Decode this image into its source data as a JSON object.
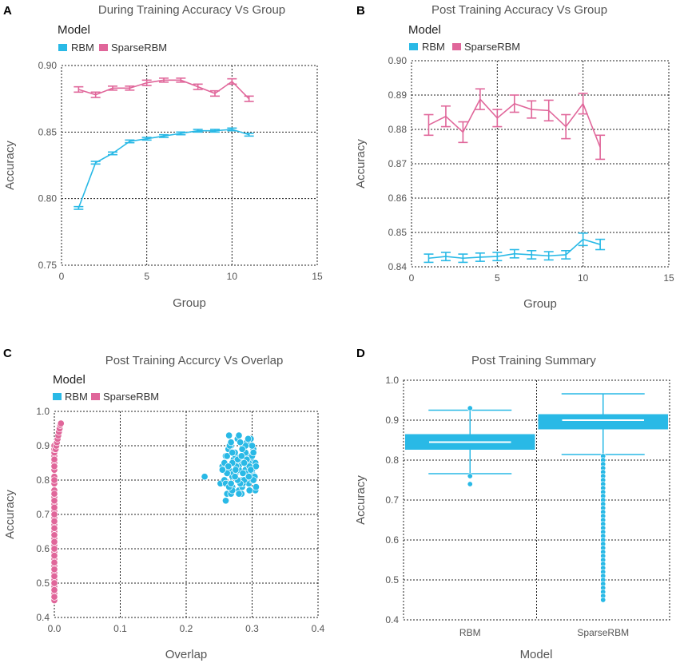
{
  "colors": {
    "rbm": "#29b9e6",
    "sparse": "#e0669a",
    "grid": "#222222",
    "text": "#555555"
  },
  "chart_data": [
    {
      "id": "A",
      "letter": "A",
      "type": "line",
      "title": "During Training Accuracy Vs Group",
      "legend_title": "Model",
      "xlabel": "Group",
      "ylabel": "Accuracy",
      "xlim": [
        0,
        15
      ],
      "ylim": [
        0.75,
        0.9
      ],
      "xticks": [
        0,
        5,
        10,
        15
      ],
      "yticks": [
        0.75,
        0.8,
        0.85,
        0.9
      ],
      "xtick_labels": [
        "0",
        "5",
        "10",
        "15"
      ],
      "ytick_labels": [
        "0.75",
        "0.80",
        "0.85",
        "0.90"
      ],
      "series": [
        {
          "name": "RBM",
          "color": "#29b9e6",
          "x": [
            1,
            2,
            3,
            4,
            5,
            6,
            7,
            8,
            9,
            10,
            11
          ],
          "y": [
            0.793,
            0.827,
            0.834,
            0.843,
            0.845,
            0.847,
            0.849,
            0.851,
            0.851,
            0.852,
            0.848
          ],
          "err": [
            0.001,
            0.001,
            0.001,
            0.001,
            0.001,
            0.001,
            0.001,
            0.001,
            0.001,
            0.001,
            0.001
          ]
        },
        {
          "name": "SparseRBM",
          "color": "#e0669a",
          "x": [
            1,
            2,
            3,
            4,
            5,
            6,
            7,
            8,
            9,
            10,
            11
          ],
          "y": [
            0.882,
            0.878,
            0.883,
            0.883,
            0.887,
            0.889,
            0.889,
            0.884,
            0.879,
            0.888,
            0.875
          ],
          "err": [
            0.002,
            0.002,
            0.0015,
            0.0015,
            0.002,
            0.0015,
            0.0015,
            0.002,
            0.002,
            0.002,
            0.002
          ]
        }
      ]
    },
    {
      "id": "B",
      "letter": "B",
      "type": "line",
      "title": "Post Training Accuracy Vs Group",
      "legend_title": "Model",
      "xlabel": "Group",
      "ylabel": "Accuracy",
      "xlim": [
        0,
        15
      ],
      "ylim": [
        0.84,
        0.9
      ],
      "xticks": [
        0,
        5,
        10,
        15
      ],
      "yticks": [
        0.84,
        0.85,
        0.86,
        0.87,
        0.88,
        0.89,
        0.9
      ],
      "xtick_labels": [
        "0",
        "5",
        "10",
        "15"
      ],
      "ytick_labels": [
        "0.84",
        "0.85",
        "0.86",
        "0.87",
        "0.88",
        "0.89",
        "0.90"
      ],
      "series": [
        {
          "name": "RBM",
          "color": "#29b9e6",
          "x": [
            1,
            2,
            3,
            4,
            5,
            6,
            7,
            8,
            9,
            10,
            11
          ],
          "y": [
            0.8425,
            0.843,
            0.8425,
            0.8428,
            0.843,
            0.8438,
            0.8435,
            0.8432,
            0.8435,
            0.848,
            0.8465
          ],
          "err": [
            0.0012,
            0.0012,
            0.0012,
            0.0012,
            0.0012,
            0.0012,
            0.0012,
            0.0012,
            0.0012,
            0.0018,
            0.0015
          ]
        },
        {
          "name": "SparseRBM",
          "color": "#e0669a",
          "x": [
            1,
            2,
            3,
            4,
            5,
            6,
            7,
            8,
            9,
            10,
            11
          ],
          "y": [
            0.8813,
            0.8838,
            0.8792,
            0.8888,
            0.8833,
            0.8875,
            0.8858,
            0.8855,
            0.8808,
            0.8875,
            0.8748
          ],
          "err": [
            0.003,
            0.003,
            0.003,
            0.003,
            0.0025,
            0.0025,
            0.0025,
            0.003,
            0.0035,
            0.003,
            0.0035
          ]
        }
      ]
    },
    {
      "id": "C",
      "letter": "C",
      "type": "scatter",
      "title": "Post Training Accurcy Vs Overlap",
      "legend_title": "Model",
      "xlabel": "Overlap",
      "ylabel": "Accuracy",
      "xlim": [
        0,
        0.4
      ],
      "ylim": [
        0.4,
        1.0
      ],
      "xticks": [
        0,
        0.1,
        0.2,
        0.3,
        0.4
      ],
      "yticks": [
        0.4,
        0.5,
        0.6,
        0.7,
        0.8,
        0.9,
        1.0
      ],
      "xtick_labels": [
        "0.0",
        "0.1",
        "0.2",
        "0.3",
        "0.4"
      ],
      "ytick_labels": [
        "0.4",
        "0.5",
        "0.6",
        "0.7",
        "0.8",
        "0.9",
        "1.0"
      ],
      "series": [
        {
          "name": "RBM",
          "color": "#29b9e6",
          "x": [
            0.228,
            0.252,
            0.255,
            0.258,
            0.26,
            0.262,
            0.265,
            0.268,
            0.27,
            0.272,
            0.275,
            0.278,
            0.28,
            0.283,
            0.285,
            0.288,
            0.29,
            0.292,
            0.295,
            0.298,
            0.3,
            0.302,
            0.305,
            0.26,
            0.265,
            0.27,
            0.275,
            0.28,
            0.285,
            0.29,
            0.295,
            0.3,
            0.262,
            0.268,
            0.274,
            0.28,
            0.286,
            0.292,
            0.298,
            0.304,
            0.258,
            0.264,
            0.27,
            0.276,
            0.282,
            0.288,
            0.294,
            0.3,
            0.306,
            0.266,
            0.272,
            0.278,
            0.284,
            0.29,
            0.296,
            0.302,
            0.26,
            0.27,
            0.28,
            0.29,
            0.3,
            0.265,
            0.275,
            0.285,
            0.295,
            0.305,
            0.255,
            0.268,
            0.282,
            0.296,
            0.262,
            0.278,
            0.292,
            0.306,
            0.27,
            0.286,
            0.3,
            0.264,
            0.28,
            0.294,
            0.274,
            0.288,
            0.302,
            0.268,
            0.284,
            0.298
          ],
          "y": [
            0.81,
            0.79,
            0.84,
            0.8,
            0.87,
            0.76,
            0.83,
            0.9,
            0.78,
            0.86,
            0.82,
            0.92,
            0.77,
            0.85,
            0.8,
            0.88,
            0.83,
            0.91,
            0.79,
            0.86,
            0.82,
            0.89,
            0.77,
            0.74,
            0.93,
            0.81,
            0.87,
            0.84,
            0.78,
            0.9,
            0.85,
            0.8,
            0.82,
            0.76,
            0.88,
            0.83,
            0.79,
            0.86,
            0.92,
            0.81,
            0.85,
            0.89,
            0.77,
            0.84,
            0.91,
            0.8,
            0.87,
            0.83,
            0.78,
            0.9,
            0.82,
            0.86,
            0.76,
            0.88,
            0.84,
            0.8,
            0.79,
            0.85,
            0.93,
            0.82,
            0.87,
            0.78,
            0.83,
            0.89,
            0.81,
            0.85,
            0.83,
            0.91,
            0.79,
            0.77,
            0.87,
            0.8,
            0.86,
            0.84,
            0.88,
            0.82,
            0.9,
            0.84,
            0.76,
            0.92,
            0.81,
            0.85,
            0.88,
            0.79,
            0.87,
            0.83
          ]
        },
        {
          "name": "SparseRBM",
          "color": "#e0669a",
          "x": [
            0.0,
            0.0,
            0.0,
            0.0,
            0.0,
            0.0,
            0.0,
            0.0,
            0.0,
            0.0,
            0.0,
            0.0,
            0.0,
            0.0,
            0.0,
            0.0,
            0.0,
            0.0,
            0.0,
            0.0,
            0.0,
            0.0,
            0.0,
            0.0,
            0.0,
            0.0,
            0.0,
            0.0,
            0.0,
            0.0,
            0.0,
            0.0,
            0.0,
            0.0,
            0.0,
            0.0,
            0.0,
            0.0,
            0.0,
            0.0,
            0.0,
            0.0,
            0.0,
            0.0,
            0.002,
            0.003,
            0.004,
            0.005,
            0.006,
            0.007,
            0.008,
            0.009,
            0.01
          ],
          "y": [
            0.45,
            0.47,
            0.49,
            0.51,
            0.53,
            0.55,
            0.57,
            0.59,
            0.61,
            0.63,
            0.65,
            0.67,
            0.69,
            0.71,
            0.73,
            0.75,
            0.77,
            0.79,
            0.81,
            0.83,
            0.85,
            0.87,
            0.88,
            0.89,
            0.9,
            0.46,
            0.48,
            0.52,
            0.56,
            0.6,
            0.64,
            0.68,
            0.72,
            0.76,
            0.8,
            0.84,
            0.86,
            0.5,
            0.54,
            0.58,
            0.62,
            0.66,
            0.7,
            0.74,
            0.89,
            0.9,
            0.91,
            0.92,
            0.93,
            0.94,
            0.95,
            0.96,
            0.965
          ]
        }
      ]
    },
    {
      "id": "D",
      "letter": "D",
      "type": "box",
      "title": "Post Training Summary",
      "xlabel": "Model",
      "ylabel": "Accuracy",
      "ylim": [
        0.4,
        1.0
      ],
      "yticks": [
        0.4,
        0.5,
        0.6,
        0.7,
        0.8,
        0.9,
        1.0
      ],
      "ytick_labels": [
        "0.4",
        "0.5",
        "0.6",
        "0.7",
        "0.8",
        "0.9",
        "1.0"
      ],
      "categories": [
        "RBM",
        "SparseRBM"
      ],
      "boxes": [
        {
          "name": "RBM",
          "q1": 0.826,
          "median": 0.845,
          "q3": 0.865,
          "whisker_low": 0.766,
          "whisker_high": 0.925,
          "outliers": [
            0.93,
            0.76,
            0.74
          ]
        },
        {
          "name": "SparseRBM",
          "q1": 0.877,
          "median": 0.9,
          "q3": 0.915,
          "whisker_low": 0.814,
          "whisker_high": 0.966,
          "outliers": [
            0.81,
            0.8,
            0.79,
            0.78,
            0.77,
            0.76,
            0.75,
            0.74,
            0.73,
            0.72,
            0.71,
            0.7,
            0.69,
            0.68,
            0.67,
            0.66,
            0.65,
            0.64,
            0.63,
            0.62,
            0.61,
            0.6,
            0.59,
            0.58,
            0.57,
            0.56,
            0.55,
            0.54,
            0.53,
            0.52,
            0.51,
            0.5,
            0.49,
            0.48,
            0.47,
            0.46,
            0.45
          ]
        }
      ]
    }
  ]
}
